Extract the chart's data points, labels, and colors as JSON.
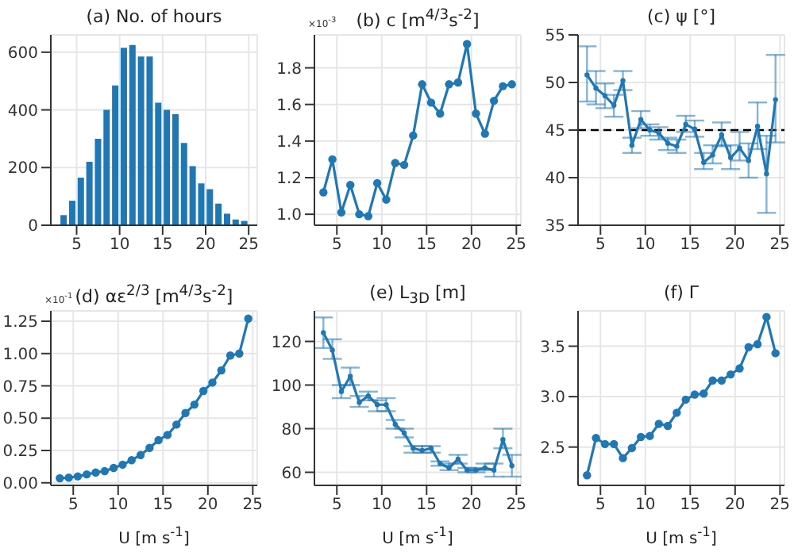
{
  "chart_data": [
    {
      "type": "histogram",
      "title": "(a) No. of hours",
      "bins": [
        3,
        4,
        5,
        6,
        7,
        8,
        9,
        10,
        11,
        12,
        13,
        14,
        15,
        16,
        17,
        18,
        19,
        20,
        21,
        22,
        23,
        24,
        25
      ],
      "values": [
        35,
        85,
        165,
        220,
        300,
        400,
        485,
        615,
        625,
        585,
        585,
        425,
        400,
        385,
        285,
        205,
        145,
        125,
        75,
        40,
        20,
        15
      ],
      "color": "#1f77b4",
      "xlim": [
        2,
        26
      ],
      "xticks": [
        5,
        10,
        15,
        20,
        25
      ],
      "ylim": [
        0,
        660
      ],
      "yticks": [
        0,
        200,
        400,
        600
      ],
      "grid": true
    },
    {
      "type": "line",
      "title": "(b) c [m$^{4/3}$s$^{-2}$]",
      "annotations": [
        "×10$^{-3}$"
      ],
      "x": [
        3.5,
        4.5,
        5.5,
        6.5,
        7.5,
        8.5,
        9.5,
        10.5,
        11.5,
        12.5,
        13.5,
        14.5,
        15.5,
        16.5,
        17.5,
        18.5,
        19.5,
        20.5,
        21.5,
        22.5,
        23.5,
        24.5
      ],
      "values": [
        1.12,
        1.3,
        1.01,
        1.16,
        1.0,
        0.99,
        1.17,
        1.08,
        1.28,
        1.27,
        1.43,
        1.71,
        1.61,
        1.55,
        1.71,
        1.72,
        1.93,
        1.55,
        1.44,
        1.62,
        1.7,
        1.71
      ],
      "color": "#1f77b4",
      "xlim": [
        2.5,
        25.5
      ],
      "xticks": [
        5,
        10,
        15,
        20,
        25
      ],
      "ylim": [
        0.94,
        1.98
      ],
      "yticks": [
        {
          "value": 1,
          "label": "1.0"
        },
        1.2,
        1.4,
        1.6,
        1.8
      ],
      "grid": true,
      "marker": "circle"
    },
    {
      "type": "line",
      "title": "(c) ψ [°]",
      "x": [
        3.5,
        4.5,
        5.5,
        6.5,
        7.5,
        8.5,
        9.5,
        10.5,
        11.5,
        12.5,
        13.5,
        14.5,
        15.5,
        16.5,
        17.5,
        18.5,
        19.5,
        20.5,
        21.5,
        22.5,
        23.5,
        24.5
      ],
      "values": [
        50.8,
        49.4,
        48.6,
        47.6,
        50.2,
        43.4,
        46.1,
        45.0,
        44.7,
        43.6,
        43.3,
        45.6,
        45.1,
        41.6,
        42.4,
        44.5,
        42.1,
        43.1,
        41.8,
        45.4,
        40.4,
        48.2
      ],
      "color": "#1f77b4",
      "errors": [
        [
          48,
          53.8
        ],
        [
          47.7,
          51.2
        ],
        [
          47.3,
          49.9
        ],
        [
          46.4,
          48.7
        ],
        [
          49.2,
          51.2
        ],
        [
          42.6,
          44.2
        ],
        [
          45.2,
          47
        ],
        [
          44.4,
          45.6
        ],
        [
          44,
          45.3
        ],
        [
          42.9,
          44.2
        ],
        [
          42.6,
          44
        ],
        [
          44.8,
          46.5
        ],
        [
          44.3,
          46
        ],
        [
          40.9,
          42.6
        ],
        [
          41.5,
          43.4
        ],
        [
          43.3,
          45.8
        ],
        [
          40.9,
          43.4
        ],
        [
          41.8,
          44.8
        ],
        [
          40,
          43.6
        ],
        [
          43,
          47.9
        ],
        [
          36.3,
          44.4
        ],
        [
          43.7,
          52.9
        ]
      ],
      "ref_lines": [
        {
          "axis": "y",
          "value": 45,
          "color": "#000000",
          "line_style": "dashed"
        }
      ],
      "xlim": [
        2.5,
        25.5
      ],
      "xticks": [
        5,
        10,
        15,
        20,
        25
      ],
      "ylim": [
        35,
        55
      ],
      "yticks": [
        35,
        40,
        45,
        50,
        55
      ],
      "grid": true,
      "marker": "circle"
    },
    {
      "type": "line",
      "title": "(d) αε$^{2/3}$ [m$^{4/3}$s$^{-2}$]",
      "annotations": [
        "×10$^{-1}$"
      ],
      "xlabel": "U [m s$^{-1}$]",
      "x": [
        3.5,
        4.5,
        5.5,
        6.5,
        7.5,
        8.5,
        9.5,
        10.5,
        11.5,
        12.5,
        13.5,
        14.5,
        15.5,
        16.5,
        17.5,
        18.5,
        19.5,
        20.5,
        21.5,
        22.5,
        23.5,
        24.5
      ],
      "values": [
        0.035,
        0.04,
        0.05,
        0.065,
        0.08,
        0.09,
        0.115,
        0.14,
        0.175,
        0.215,
        0.27,
        0.33,
        0.37,
        0.45,
        0.54,
        0.605,
        0.71,
        0.775,
        0.87,
        0.985,
        1.0,
        1.27
      ],
      "color": "#1f77b4",
      "xlim": [
        2.5,
        25.5
      ],
      "xticks": [
        5,
        10,
        15,
        20,
        25
      ],
      "ylim": [
        -0.02,
        1.33
      ],
      "yticks": [
        {
          "value": 0,
          "label": "0.00"
        },
        {
          "value": 0.25,
          "label": "0.25"
        },
        {
          "value": 0.5,
          "label": "0.50"
        },
        {
          "value": 0.75,
          "label": "0.75"
        },
        {
          "value": 1,
          "label": "1.00"
        },
        {
          "value": 1.25,
          "label": "1.25"
        }
      ],
      "grid": true,
      "marker": "circle"
    },
    {
      "type": "line",
      "title": "(e) L$_{3D}$ [m]",
      "xlabel": "U [m s$^{-1}$]",
      "x": [
        3.5,
        4.5,
        5.5,
        6.5,
        7.5,
        8.5,
        9.5,
        10.5,
        11.5,
        12.5,
        13.5,
        14.5,
        15.5,
        16.5,
        17.5,
        18.5,
        19.5,
        20.5,
        21.5,
        22.5,
        23.5,
        24.5
      ],
      "values": [
        124,
        116,
        97,
        104,
        92,
        95,
        91,
        91,
        82,
        78,
        71,
        70,
        71,
        64,
        62,
        66,
        61,
        61,
        62,
        61,
        75,
        63
      ],
      "color": "#1f77b4",
      "errors": [
        [
          117,
          131
        ],
        [
          112,
          121
        ],
        [
          94,
          100
        ],
        [
          100,
          108
        ],
        [
          90,
          95
        ],
        [
          93,
          97
        ],
        [
          88,
          93
        ],
        [
          88,
          94
        ],
        [
          80,
          84
        ],
        [
          76,
          80
        ],
        [
          69,
          72
        ],
        [
          69,
          72
        ],
        [
          69,
          72
        ],
        [
          63,
          65
        ],
        [
          61,
          64
        ],
        [
          64,
          68
        ],
        [
          60,
          62
        ],
        [
          60,
          62
        ],
        [
          61,
          64
        ],
        [
          58,
          64
        ],
        [
          71,
          80
        ],
        [
          58,
          68
        ]
      ],
      "xlim": [
        2.5,
        25.5
      ],
      "xticks": [
        5,
        10,
        15,
        20,
        25
      ],
      "ylim": [
        54,
        134
      ],
      "yticks": [
        60,
        80,
        100,
        120
      ],
      "grid": true,
      "marker": "circle"
    },
    {
      "type": "line",
      "title": "(f) Γ",
      "xlabel": "U [m s$^{-1}$]",
      "x": [
        3.5,
        4.5,
        5.5,
        6.5,
        7.5,
        8.5,
        9.5,
        10.5,
        11.5,
        12.5,
        13.5,
        14.5,
        15.5,
        16.5,
        17.5,
        18.5,
        19.5,
        20.5,
        21.5,
        22.5,
        23.5,
        24.5
      ],
      "values": [
        2.22,
        2.59,
        2.53,
        2.53,
        2.39,
        2.49,
        2.6,
        2.61,
        2.73,
        2.71,
        2.84,
        2.97,
        3.02,
        3.03,
        3.16,
        3.16,
        3.22,
        3.28,
        3.49,
        3.52,
        3.79,
        3.43
      ],
      "color": "#1f77b4",
      "xlim": [
        2.5,
        25.5
      ],
      "xticks": [
        5,
        10,
        15,
        20,
        25
      ],
      "ylim": [
        2.12,
        3.85
      ],
      "yticks": [
        {
          "value": 2.5,
          "label": "2.5"
        },
        {
          "value": 3,
          "label": "3.0"
        },
        {
          "value": 3.5,
          "label": "3.5"
        }
      ],
      "grid": true,
      "marker": "circle"
    }
  ]
}
